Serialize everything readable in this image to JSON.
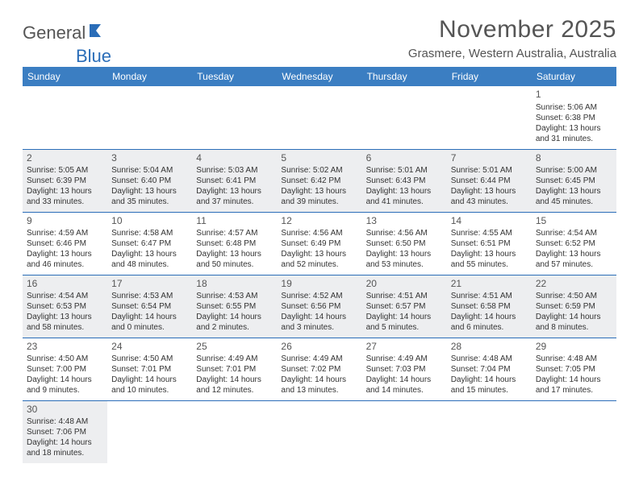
{
  "logo": {
    "part1": "General",
    "part2": "Blue"
  },
  "title": "November 2025",
  "location": "Grasmere, Western Australia, Australia",
  "colors": {
    "header_bg": "#3b7ec2",
    "header_text": "#ffffff",
    "border": "#2a6db8",
    "shaded_row": "#edeef0",
    "text": "#333333",
    "title_text": "#555555"
  },
  "weekdays": [
    "Sunday",
    "Monday",
    "Tuesday",
    "Wednesday",
    "Thursday",
    "Friday",
    "Saturday"
  ],
  "weeks": [
    [
      null,
      null,
      null,
      null,
      null,
      null,
      {
        "n": "1",
        "sr": "Sunrise: 5:06 AM",
        "ss": "Sunset: 6:38 PM",
        "d1": "Daylight: 13 hours",
        "d2": "and 31 minutes."
      }
    ],
    [
      {
        "n": "2",
        "sr": "Sunrise: 5:05 AM",
        "ss": "Sunset: 6:39 PM",
        "d1": "Daylight: 13 hours",
        "d2": "and 33 minutes."
      },
      {
        "n": "3",
        "sr": "Sunrise: 5:04 AM",
        "ss": "Sunset: 6:40 PM",
        "d1": "Daylight: 13 hours",
        "d2": "and 35 minutes."
      },
      {
        "n": "4",
        "sr": "Sunrise: 5:03 AM",
        "ss": "Sunset: 6:41 PM",
        "d1": "Daylight: 13 hours",
        "d2": "and 37 minutes."
      },
      {
        "n": "5",
        "sr": "Sunrise: 5:02 AM",
        "ss": "Sunset: 6:42 PM",
        "d1": "Daylight: 13 hours",
        "d2": "and 39 minutes."
      },
      {
        "n": "6",
        "sr": "Sunrise: 5:01 AM",
        "ss": "Sunset: 6:43 PM",
        "d1": "Daylight: 13 hours",
        "d2": "and 41 minutes."
      },
      {
        "n": "7",
        "sr": "Sunrise: 5:01 AM",
        "ss": "Sunset: 6:44 PM",
        "d1": "Daylight: 13 hours",
        "d2": "and 43 minutes."
      },
      {
        "n": "8",
        "sr": "Sunrise: 5:00 AM",
        "ss": "Sunset: 6:45 PM",
        "d1": "Daylight: 13 hours",
        "d2": "and 45 minutes."
      }
    ],
    [
      {
        "n": "9",
        "sr": "Sunrise: 4:59 AM",
        "ss": "Sunset: 6:46 PM",
        "d1": "Daylight: 13 hours",
        "d2": "and 46 minutes."
      },
      {
        "n": "10",
        "sr": "Sunrise: 4:58 AM",
        "ss": "Sunset: 6:47 PM",
        "d1": "Daylight: 13 hours",
        "d2": "and 48 minutes."
      },
      {
        "n": "11",
        "sr": "Sunrise: 4:57 AM",
        "ss": "Sunset: 6:48 PM",
        "d1": "Daylight: 13 hours",
        "d2": "and 50 minutes."
      },
      {
        "n": "12",
        "sr": "Sunrise: 4:56 AM",
        "ss": "Sunset: 6:49 PM",
        "d1": "Daylight: 13 hours",
        "d2": "and 52 minutes."
      },
      {
        "n": "13",
        "sr": "Sunrise: 4:56 AM",
        "ss": "Sunset: 6:50 PM",
        "d1": "Daylight: 13 hours",
        "d2": "and 53 minutes."
      },
      {
        "n": "14",
        "sr": "Sunrise: 4:55 AM",
        "ss": "Sunset: 6:51 PM",
        "d1": "Daylight: 13 hours",
        "d2": "and 55 minutes."
      },
      {
        "n": "15",
        "sr": "Sunrise: 4:54 AM",
        "ss": "Sunset: 6:52 PM",
        "d1": "Daylight: 13 hours",
        "d2": "and 57 minutes."
      }
    ],
    [
      {
        "n": "16",
        "sr": "Sunrise: 4:54 AM",
        "ss": "Sunset: 6:53 PM",
        "d1": "Daylight: 13 hours",
        "d2": "and 58 minutes."
      },
      {
        "n": "17",
        "sr": "Sunrise: 4:53 AM",
        "ss": "Sunset: 6:54 PM",
        "d1": "Daylight: 14 hours",
        "d2": "and 0 minutes."
      },
      {
        "n": "18",
        "sr": "Sunrise: 4:53 AM",
        "ss": "Sunset: 6:55 PM",
        "d1": "Daylight: 14 hours",
        "d2": "and 2 minutes."
      },
      {
        "n": "19",
        "sr": "Sunrise: 4:52 AM",
        "ss": "Sunset: 6:56 PM",
        "d1": "Daylight: 14 hours",
        "d2": "and 3 minutes."
      },
      {
        "n": "20",
        "sr": "Sunrise: 4:51 AM",
        "ss": "Sunset: 6:57 PM",
        "d1": "Daylight: 14 hours",
        "d2": "and 5 minutes."
      },
      {
        "n": "21",
        "sr": "Sunrise: 4:51 AM",
        "ss": "Sunset: 6:58 PM",
        "d1": "Daylight: 14 hours",
        "d2": "and 6 minutes."
      },
      {
        "n": "22",
        "sr": "Sunrise: 4:50 AM",
        "ss": "Sunset: 6:59 PM",
        "d1": "Daylight: 14 hours",
        "d2": "and 8 minutes."
      }
    ],
    [
      {
        "n": "23",
        "sr": "Sunrise: 4:50 AM",
        "ss": "Sunset: 7:00 PM",
        "d1": "Daylight: 14 hours",
        "d2": "and 9 minutes."
      },
      {
        "n": "24",
        "sr": "Sunrise: 4:50 AM",
        "ss": "Sunset: 7:01 PM",
        "d1": "Daylight: 14 hours",
        "d2": "and 10 minutes."
      },
      {
        "n": "25",
        "sr": "Sunrise: 4:49 AM",
        "ss": "Sunset: 7:01 PM",
        "d1": "Daylight: 14 hours",
        "d2": "and 12 minutes."
      },
      {
        "n": "26",
        "sr": "Sunrise: 4:49 AM",
        "ss": "Sunset: 7:02 PM",
        "d1": "Daylight: 14 hours",
        "d2": "and 13 minutes."
      },
      {
        "n": "27",
        "sr": "Sunrise: 4:49 AM",
        "ss": "Sunset: 7:03 PM",
        "d1": "Daylight: 14 hours",
        "d2": "and 14 minutes."
      },
      {
        "n": "28",
        "sr": "Sunrise: 4:48 AM",
        "ss": "Sunset: 7:04 PM",
        "d1": "Daylight: 14 hours",
        "d2": "and 15 minutes."
      },
      {
        "n": "29",
        "sr": "Sunrise: 4:48 AM",
        "ss": "Sunset: 7:05 PM",
        "d1": "Daylight: 14 hours",
        "d2": "and 17 minutes."
      }
    ],
    [
      {
        "n": "30",
        "sr": "Sunrise: 4:48 AM",
        "ss": "Sunset: 7:06 PM",
        "d1": "Daylight: 14 hours",
        "d2": "and 18 minutes."
      },
      null,
      null,
      null,
      null,
      null,
      null
    ]
  ]
}
